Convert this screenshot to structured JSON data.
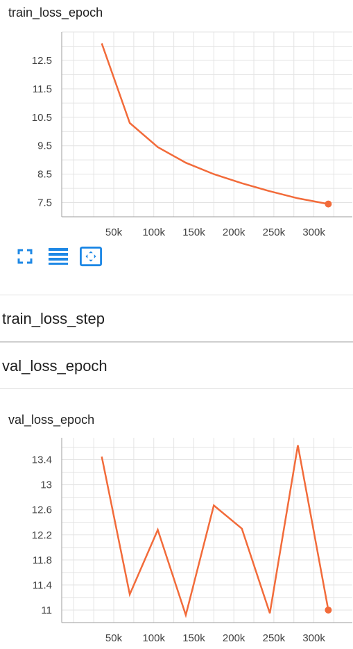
{
  "colors": {
    "series": "#f26b3a",
    "grid": "#e3e3e3",
    "axis": "#9e9e9e",
    "tick_text": "#424242",
    "icon": "#1e88e5"
  },
  "card1": {
    "title": "train_loss_epoch"
  },
  "toolbar": {
    "icons": [
      "fullscreen-icon",
      "data-menu-icon",
      "fit-domain-icon"
    ]
  },
  "sections": {
    "train_step": "train_loss_step",
    "val_epoch": "val_loss_epoch"
  },
  "card2": {
    "title": "val_loss_epoch"
  },
  "chart_data": [
    {
      "type": "line",
      "title": "train_loss_epoch",
      "xlabel": "",
      "ylabel": "",
      "x": [
        35000,
        70000,
        105000,
        140000,
        175000,
        210000,
        245000,
        280000,
        318000
      ],
      "series": [
        {
          "values": [
            13.1,
            10.3,
            9.45,
            8.9,
            8.5,
            8.18,
            7.9,
            7.65,
            7.45
          ]
        }
      ],
      "xlim": [
        -15000,
        348000
      ],
      "ylim": [
        7.0,
        13.5
      ],
      "xticks": [
        50000,
        100000,
        150000,
        200000,
        250000,
        300000
      ],
      "xtick_labels": [
        "50k",
        "100k",
        "150k",
        "200k",
        "250k",
        "300k"
      ],
      "yticks": [
        7.5,
        8.5,
        9.5,
        10.5,
        11.5,
        12.5
      ],
      "ytick_labels": [
        "7.5",
        "8.5",
        "9.5",
        "10.5",
        "11.5",
        "12.5"
      ],
      "grid": true,
      "last_point_marker": true
    },
    {
      "type": "line",
      "title": "val_loss_epoch",
      "xlabel": "",
      "ylabel": "",
      "x": [
        35000,
        70000,
        105000,
        140000,
        175000,
        210000,
        245000,
        280000,
        318000
      ],
      "series": [
        {
          "values": [
            13.45,
            11.25,
            12.28,
            10.92,
            12.67,
            12.3,
            10.95,
            13.63,
            11.0
          ]
        }
      ],
      "xlim": [
        -15000,
        348000
      ],
      "ylim": [
        10.8,
        13.75
      ],
      "xticks": [
        50000,
        100000,
        150000,
        200000,
        250000,
        300000
      ],
      "xtick_labels": [
        "50k",
        "100k",
        "150k",
        "200k",
        "250k",
        "300k"
      ],
      "yticks": [
        11,
        11.4,
        11.8,
        12.2,
        12.6,
        13,
        13.4
      ],
      "ytick_labels": [
        "11",
        "11.4",
        "11.8",
        "12.2",
        "12.6",
        "13",
        "13.4"
      ],
      "grid": true,
      "last_point_marker": true
    }
  ]
}
